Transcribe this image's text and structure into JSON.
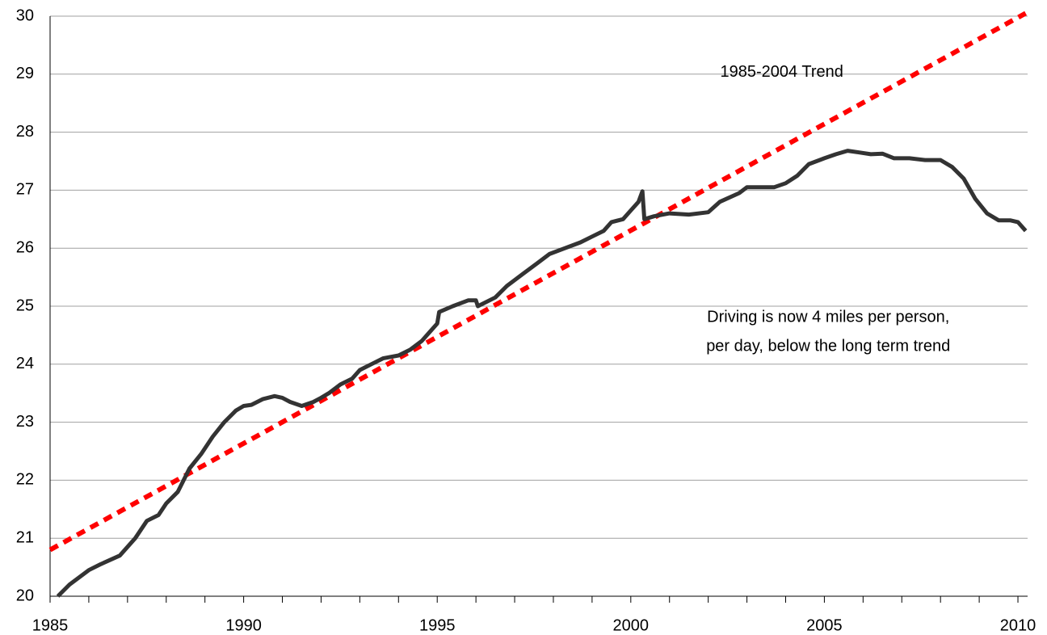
{
  "chart_data": {
    "type": "line",
    "xlim": [
      1985,
      2010.25
    ],
    "xticks": [
      1985,
      1990,
      1995,
      2000,
      2005,
      2010
    ],
    "xminor_ticks": [
      1986,
      1987,
      1988,
      1989,
      1991,
      1992,
      1993,
      1994,
      1996,
      1997,
      1998,
      1999,
      2001,
      2002,
      2003,
      2004,
      2006,
      2007,
      2008,
      2009
    ],
    "ylim": [
      20,
      30
    ],
    "yticks": [
      20,
      21,
      22,
      23,
      24,
      25,
      26,
      27,
      28,
      29,
      30
    ],
    "grid": true,
    "series": [
      {
        "color": "#333333",
        "style": "solid",
        "x": [
          1985.2,
          1985.5,
          1986.0,
          1986.3,
          1986.8,
          1987.2,
          1987.5,
          1987.8,
          1988.0,
          1988.3,
          1988.6,
          1988.9,
          1989.2,
          1989.5,
          1989.8,
          1990.0,
          1990.2,
          1990.5,
          1990.8,
          1991.0,
          1991.2,
          1991.5,
          1991.8,
          1992.0,
          1992.2,
          1992.5,
          1992.8,
          1993.0,
          1993.3,
          1993.6,
          1994.0,
          1994.3,
          1994.6,
          1994.8,
          1995.0,
          1995.05,
          1995.4,
          1995.8,
          1996.0,
          1996.05,
          1996.5,
          1996.8,
          1997.2,
          1997.6,
          1997.9,
          1998.3,
          1998.7,
          1999.0,
          1999.3,
          1999.5,
          1999.8,
          2000.0,
          2000.2,
          2000.3,
          2000.35,
          2000.6,
          2001.0,
          2001.5,
          2002.0,
          2002.3,
          2002.8,
          2003.0,
          2003.3,
          2003.7,
          2004.0,
          2004.3,
          2004.6,
          2005.0,
          2005.3,
          2005.6,
          2005.9,
          2006.2,
          2006.5,
          2006.8,
          2007.2,
          2007.6,
          2008.0,
          2008.3,
          2008.6,
          2008.9,
          2009.2,
          2009.5,
          2009.8,
          2010.0,
          2010.2
        ],
        "values": [
          20.0,
          20.2,
          20.45,
          20.55,
          20.7,
          21.0,
          21.3,
          21.4,
          21.6,
          21.8,
          22.2,
          22.45,
          22.75,
          23.0,
          23.2,
          23.28,
          23.3,
          23.4,
          23.45,
          23.42,
          23.35,
          23.28,
          23.35,
          23.42,
          23.5,
          23.65,
          23.75,
          23.9,
          24.0,
          24.1,
          24.15,
          24.25,
          24.4,
          24.55,
          24.7,
          24.9,
          25.0,
          25.1,
          25.1,
          25.0,
          25.15,
          25.35,
          25.55,
          25.75,
          25.9,
          26.0,
          26.1,
          26.2,
          26.3,
          26.45,
          26.5,
          26.65,
          26.8,
          26.98,
          26.5,
          26.55,
          26.6,
          26.58,
          26.62,
          26.8,
          26.95,
          27.05,
          27.05,
          27.05,
          27.12,
          27.25,
          27.45,
          27.55,
          27.62,
          27.68,
          27.65,
          27.62,
          27.63,
          27.55,
          27.55,
          27.52,
          27.52,
          27.4,
          27.2,
          26.85,
          26.6,
          26.48,
          26.48,
          26.45,
          26.3
        ]
      },
      {
        "color": "#ff0000",
        "style": "dashed",
        "x": [
          1985,
          2010.2
        ],
        "values": [
          20.8,
          30.05
        ]
      }
    ],
    "annotations": [
      {
        "text": "1985-2004 Trend",
        "x": 2003.9,
        "y": 29.03
      },
      {
        "text": "Driving is now 4 miles per person,",
        "x": 2005.1,
        "y": 24.8
      },
      {
        "text": "per day, below the long term trend",
        "x": 2005.1,
        "y": 24.3
      }
    ]
  }
}
